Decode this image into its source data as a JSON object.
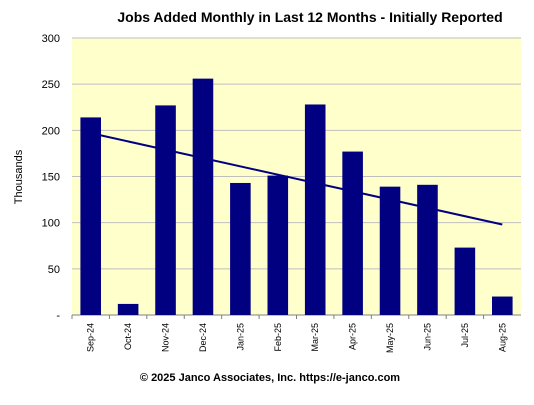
{
  "chart_data": {
    "type": "bar",
    "title": "Jobs Added Monthly in Last 12 Months - Initially Reported",
    "xlabel": "",
    "ylabel": "Thousands",
    "categories": [
      "Sep-24",
      "Oct-24",
      "Nov-24",
      "Dec-24",
      "Jan-25",
      "Feb-25",
      "Mar-25",
      "Apr-25",
      "May-25",
      "Jun-25",
      "Jul-25",
      "Aug-25"
    ],
    "values": [
      214,
      12,
      227,
      256,
      143,
      151,
      228,
      177,
      139,
      141,
      73,
      20
    ],
    "ylim": [
      0,
      300
    ],
    "yticks": [
      0,
      50,
      100,
      150,
      200,
      250,
      300
    ],
    "ytick_labels": [
      "-",
      "50",
      "100",
      "150",
      "200",
      "250",
      "300"
    ],
    "grid": true,
    "trendline": {
      "type": "linear",
      "start": 197,
      "end": 98
    },
    "colors": {
      "bar": "#000080",
      "trend": "#000080",
      "plot_bg": "#FFFFCC",
      "grid": "#BFBFBF"
    }
  },
  "footer": "© 2025 Janco Associates, Inc.  https://e-janco.com"
}
